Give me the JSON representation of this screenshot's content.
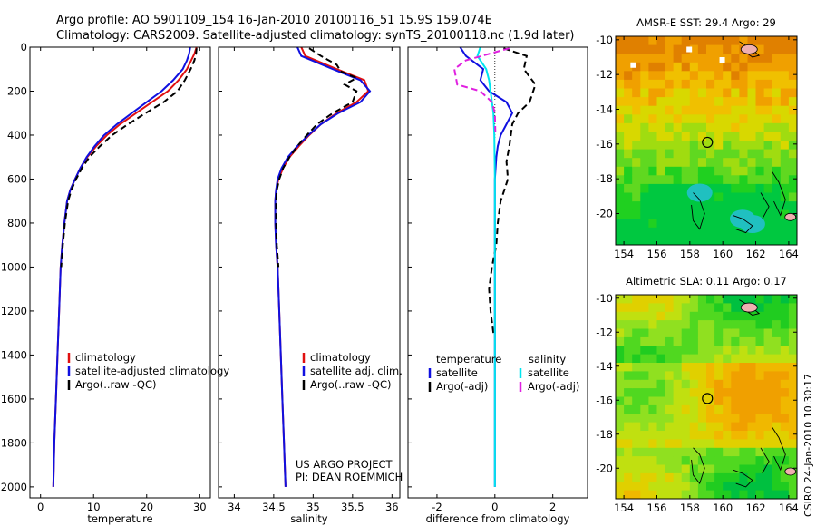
{
  "header": {
    "line1": "Argo profile: AO 5901109_154 16-Jan-2010 20100116_51 15.9S 159.074E",
    "line2": "Climatology: CARS2009. Satellite-adjusted climatology: synTS_20100118.nc (1.9d later)"
  },
  "side_label": "CSIRO 24-Jan-2010 10:30:17",
  "project": {
    "line1": "US ARGO PROJECT",
    "line2": "PI: DEAN ROEMMICH"
  },
  "colors": {
    "climatology": "#e01010",
    "satellite": "#1010e0",
    "argo": "#000000",
    "sat_sal": "#00e5ee",
    "argo_sal": "#e020e0"
  },
  "chart_data": [
    {
      "type": "line",
      "xlabel": "temperature",
      "xlim": [
        -2,
        32
      ],
      "ylim": [
        2050,
        0
      ],
      "xticks": [
        0,
        10,
        20,
        30
      ],
      "yticks": [
        0,
        200,
        400,
        600,
        800,
        1000,
        1200,
        1400,
        1600,
        1800,
        2000
      ],
      "legend": [
        "climatology",
        "satellite-adjusted climatology",
        "Argo(..raw -QC)"
      ],
      "series": [
        {
          "name": "climatology",
          "style": "solid",
          "color": "#e01010",
          "points": [
            [
              29.4,
              0
            ],
            [
              29.0,
              30
            ],
            [
              28.4,
              60
            ],
            [
              27.6,
              100
            ],
            [
              26.0,
              150
            ],
            [
              24.0,
              200
            ],
            [
              21.0,
              250
            ],
            [
              18.0,
              300
            ],
            [
              15.0,
              350
            ],
            [
              12.5,
              400
            ],
            [
              10.5,
              450
            ],
            [
              8.8,
              500
            ],
            [
              7.5,
              550
            ],
            [
              6.5,
              600
            ],
            [
              5.6,
              650
            ],
            [
              5.0,
              700
            ],
            [
              4.5,
              800
            ],
            [
              4.1,
              900
            ],
            [
              3.8,
              1000
            ],
            [
              3.5,
              1200
            ],
            [
              3.2,
              1400
            ],
            [
              2.9,
              1600
            ],
            [
              2.6,
              1800
            ],
            [
              2.4,
              2000
            ]
          ]
        },
        {
          "name": "satellite-adjusted climatology",
          "style": "solid",
          "color": "#1010e0",
          "points": [
            [
              28.2,
              0
            ],
            [
              28.0,
              30
            ],
            [
              27.6,
              60
            ],
            [
              26.8,
              100
            ],
            [
              25.0,
              150
            ],
            [
              22.8,
              200
            ],
            [
              20.0,
              250
            ],
            [
              17.2,
              300
            ],
            [
              14.4,
              350
            ],
            [
              12.0,
              400
            ],
            [
              10.2,
              450
            ],
            [
              8.7,
              500
            ],
            [
              7.5,
              550
            ],
            [
              6.5,
              600
            ],
            [
              5.6,
              650
            ],
            [
              5.0,
              700
            ],
            [
              4.5,
              800
            ],
            [
              4.1,
              900
            ],
            [
              3.8,
              1000
            ],
            [
              3.5,
              1200
            ],
            [
              3.2,
              1400
            ],
            [
              2.9,
              1600
            ],
            [
              2.6,
              1800
            ],
            [
              2.4,
              2000
            ]
          ]
        },
        {
          "name": "Argo(..raw -QC)",
          "style": "dashed",
          "color": "#000000",
          "points": [
            [
              29.4,
              5
            ],
            [
              29.3,
              30
            ],
            [
              29.0,
              60
            ],
            [
              28.3,
              100
            ],
            [
              27.2,
              150
            ],
            [
              25.8,
              200
            ],
            [
              23.2,
              250
            ],
            [
              19.8,
              300
            ],
            [
              16.5,
              350
            ],
            [
              13.5,
              400
            ],
            [
              11.2,
              450
            ],
            [
              9.2,
              500
            ],
            [
              7.8,
              550
            ],
            [
              6.7,
              600
            ],
            [
              5.8,
              650
            ],
            [
              5.2,
              700
            ],
            [
              4.6,
              800
            ],
            [
              4.2,
              900
            ],
            [
              3.9,
              1000
            ]
          ]
        }
      ]
    },
    {
      "type": "line",
      "xlabel": "salinity",
      "xlim": [
        33.8,
        36.1
      ],
      "ylim": [
        2050,
        0
      ],
      "xticks": [
        34,
        34.5,
        35,
        35.5,
        36
      ],
      "legend": [
        "climatology",
        "satellite adj. clim.",
        "Argo(..raw -QC)"
      ],
      "series": [
        {
          "name": "climatology",
          "style": "solid",
          "color": "#e01010",
          "points": [
            [
              34.85,
              0
            ],
            [
              34.9,
              40
            ],
            [
              35.3,
              100
            ],
            [
              35.65,
              150
            ],
            [
              35.7,
              200
            ],
            [
              35.55,
              250
            ],
            [
              35.3,
              300
            ],
            [
              35.1,
              350
            ],
            [
              34.95,
              400
            ],
            [
              34.82,
              450
            ],
            [
              34.7,
              500
            ],
            [
              34.62,
              550
            ],
            [
              34.56,
              600
            ],
            [
              34.53,
              650
            ],
            [
              34.52,
              700
            ],
            [
              34.52,
              800
            ],
            [
              34.53,
              900
            ],
            [
              34.55,
              1000
            ],
            [
              34.57,
              1200
            ],
            [
              34.59,
              1400
            ],
            [
              34.61,
              1600
            ],
            [
              34.63,
              1800
            ],
            [
              34.65,
              2000
            ]
          ]
        },
        {
          "name": "satellite adj. clim.",
          "style": "solid",
          "color": "#1010e0",
          "points": [
            [
              34.8,
              0
            ],
            [
              34.85,
              40
            ],
            [
              35.25,
              100
            ],
            [
              35.6,
              150
            ],
            [
              35.72,
              200
            ],
            [
              35.6,
              250
            ],
            [
              35.32,
              300
            ],
            [
              35.1,
              350
            ],
            [
              34.94,
              400
            ],
            [
              34.8,
              450
            ],
            [
              34.68,
              500
            ],
            [
              34.6,
              550
            ],
            [
              34.55,
              600
            ],
            [
              34.53,
              650
            ],
            [
              34.52,
              700
            ],
            [
              34.52,
              800
            ],
            [
              34.53,
              900
            ],
            [
              34.55,
              1000
            ],
            [
              34.57,
              1200
            ],
            [
              34.59,
              1400
            ],
            [
              34.61,
              1600
            ],
            [
              34.63,
              1800
            ],
            [
              34.65,
              2000
            ]
          ]
        },
        {
          "name": "Argo(..raw -QC)",
          "style": "dashed",
          "color": "#000000",
          "points": [
            [
              34.95,
              5
            ],
            [
              35.1,
              40
            ],
            [
              35.3,
              80
            ],
            [
              35.35,
              110
            ],
            [
              35.55,
              140
            ],
            [
              35.4,
              170
            ],
            [
              35.55,
              200
            ],
            [
              35.5,
              250
            ],
            [
              35.25,
              300
            ],
            [
              35.05,
              350
            ],
            [
              34.92,
              400
            ],
            [
              34.8,
              450
            ],
            [
              34.7,
              500
            ],
            [
              34.62,
              550
            ],
            [
              34.57,
              600
            ],
            [
              34.54,
              650
            ],
            [
              34.53,
              700
            ],
            [
              34.53,
              800
            ],
            [
              34.54,
              900
            ],
            [
              34.56,
              1000
            ]
          ]
        }
      ]
    },
    {
      "type": "line",
      "xlabel": "difference from climatology",
      "xlim": [
        -3,
        3.2
      ],
      "ylim": [
        2050,
        0
      ],
      "xticks": [
        -2,
        0,
        2
      ],
      "legend_left_title": "temperature",
      "legend_left": [
        "satellite",
        "Argo(-adj)"
      ],
      "legend_right_title": "salinity",
      "legend_right": [
        "satellite",
        "Argo(-adj)"
      ],
      "series": [
        {
          "name": "satellite",
          "group": "temperature",
          "style": "solid",
          "color": "#1010e0",
          "points": [
            [
              -1.2,
              0
            ],
            [
              -1.0,
              40
            ],
            [
              -0.4,
              100
            ],
            [
              -0.5,
              150
            ],
            [
              -0.2,
              200
            ],
            [
              0.4,
              250
            ],
            [
              0.6,
              300
            ],
            [
              0.4,
              350
            ],
            [
              0.2,
              400
            ],
            [
              0.1,
              450
            ],
            [
              0.05,
              500
            ],
            [
              0.0,
              600
            ],
            [
              0.0,
              800
            ],
            [
              0.0,
              2000
            ]
          ]
        },
        {
          "name": "Argo(-adj)",
          "group": "temperature",
          "style": "dashed",
          "color": "#000000",
          "points": [
            [
              0.3,
              5
            ],
            [
              1.1,
              40
            ],
            [
              1.0,
              100
            ],
            [
              1.4,
              170
            ],
            [
              1.2,
              250
            ],
            [
              0.8,
              300
            ],
            [
              0.6,
              350
            ],
            [
              0.5,
              450
            ],
            [
              0.4,
              520
            ],
            [
              0.45,
              600
            ],
            [
              0.2,
              700
            ],
            [
              0.1,
              800
            ],
            [
              0.05,
              900
            ],
            [
              -0.1,
              1000
            ],
            [
              -0.2,
              1100
            ],
            [
              -0.15,
              1200
            ],
            [
              -0.05,
              1300
            ]
          ]
        },
        {
          "name": "satellite",
          "group": "salinity",
          "style": "solid",
          "color": "#00e5ee",
          "points": [
            [
              -0.5,
              0
            ],
            [
              -0.6,
              40
            ],
            [
              -0.3,
              100
            ],
            [
              -0.2,
              150
            ],
            [
              -0.15,
              200
            ],
            [
              -0.05,
              300
            ],
            [
              -0.02,
              400
            ],
            [
              0.0,
              600
            ],
            [
              0.0,
              800
            ],
            [
              0.0,
              2000
            ]
          ]
        },
        {
          "name": "Argo(-adj)",
          "group": "salinity",
          "style": "dashed",
          "color": "#e020e0",
          "points": [
            [
              0.5,
              5
            ],
            [
              -1.0,
              60
            ],
            [
              -1.4,
              100
            ],
            [
              -1.3,
              170
            ],
            [
              -0.5,
              200
            ],
            [
              -0.1,
              250
            ],
            [
              0.0,
              300
            ],
            [
              0.02,
              400
            ]
          ]
        }
      ]
    },
    {
      "type": "heatmap",
      "title": "AMSR-E SST: 29.4 Argo: 29",
      "xlim": [
        153.5,
        164.5
      ],
      "ylim": [
        -21.8,
        -9.8
      ],
      "xticks": [
        154,
        156,
        158,
        160,
        162,
        164
      ],
      "yticks": [
        -10,
        -12,
        -14,
        -16,
        -18,
        -20
      ],
      "marker": [
        159.07,
        -15.9
      ]
    },
    {
      "type": "heatmap",
      "title": "Altimetric SLA: 0.11 Argo: 0.17",
      "xlim": [
        153.5,
        164.5
      ],
      "ylim": [
        -21.8,
        -9.8
      ],
      "xticks": [
        154,
        156,
        158,
        160,
        162,
        164
      ],
      "yticks": [
        -10,
        -12,
        -14,
        -16,
        -18,
        -20
      ],
      "marker": [
        159.07,
        -15.9
      ]
    }
  ]
}
